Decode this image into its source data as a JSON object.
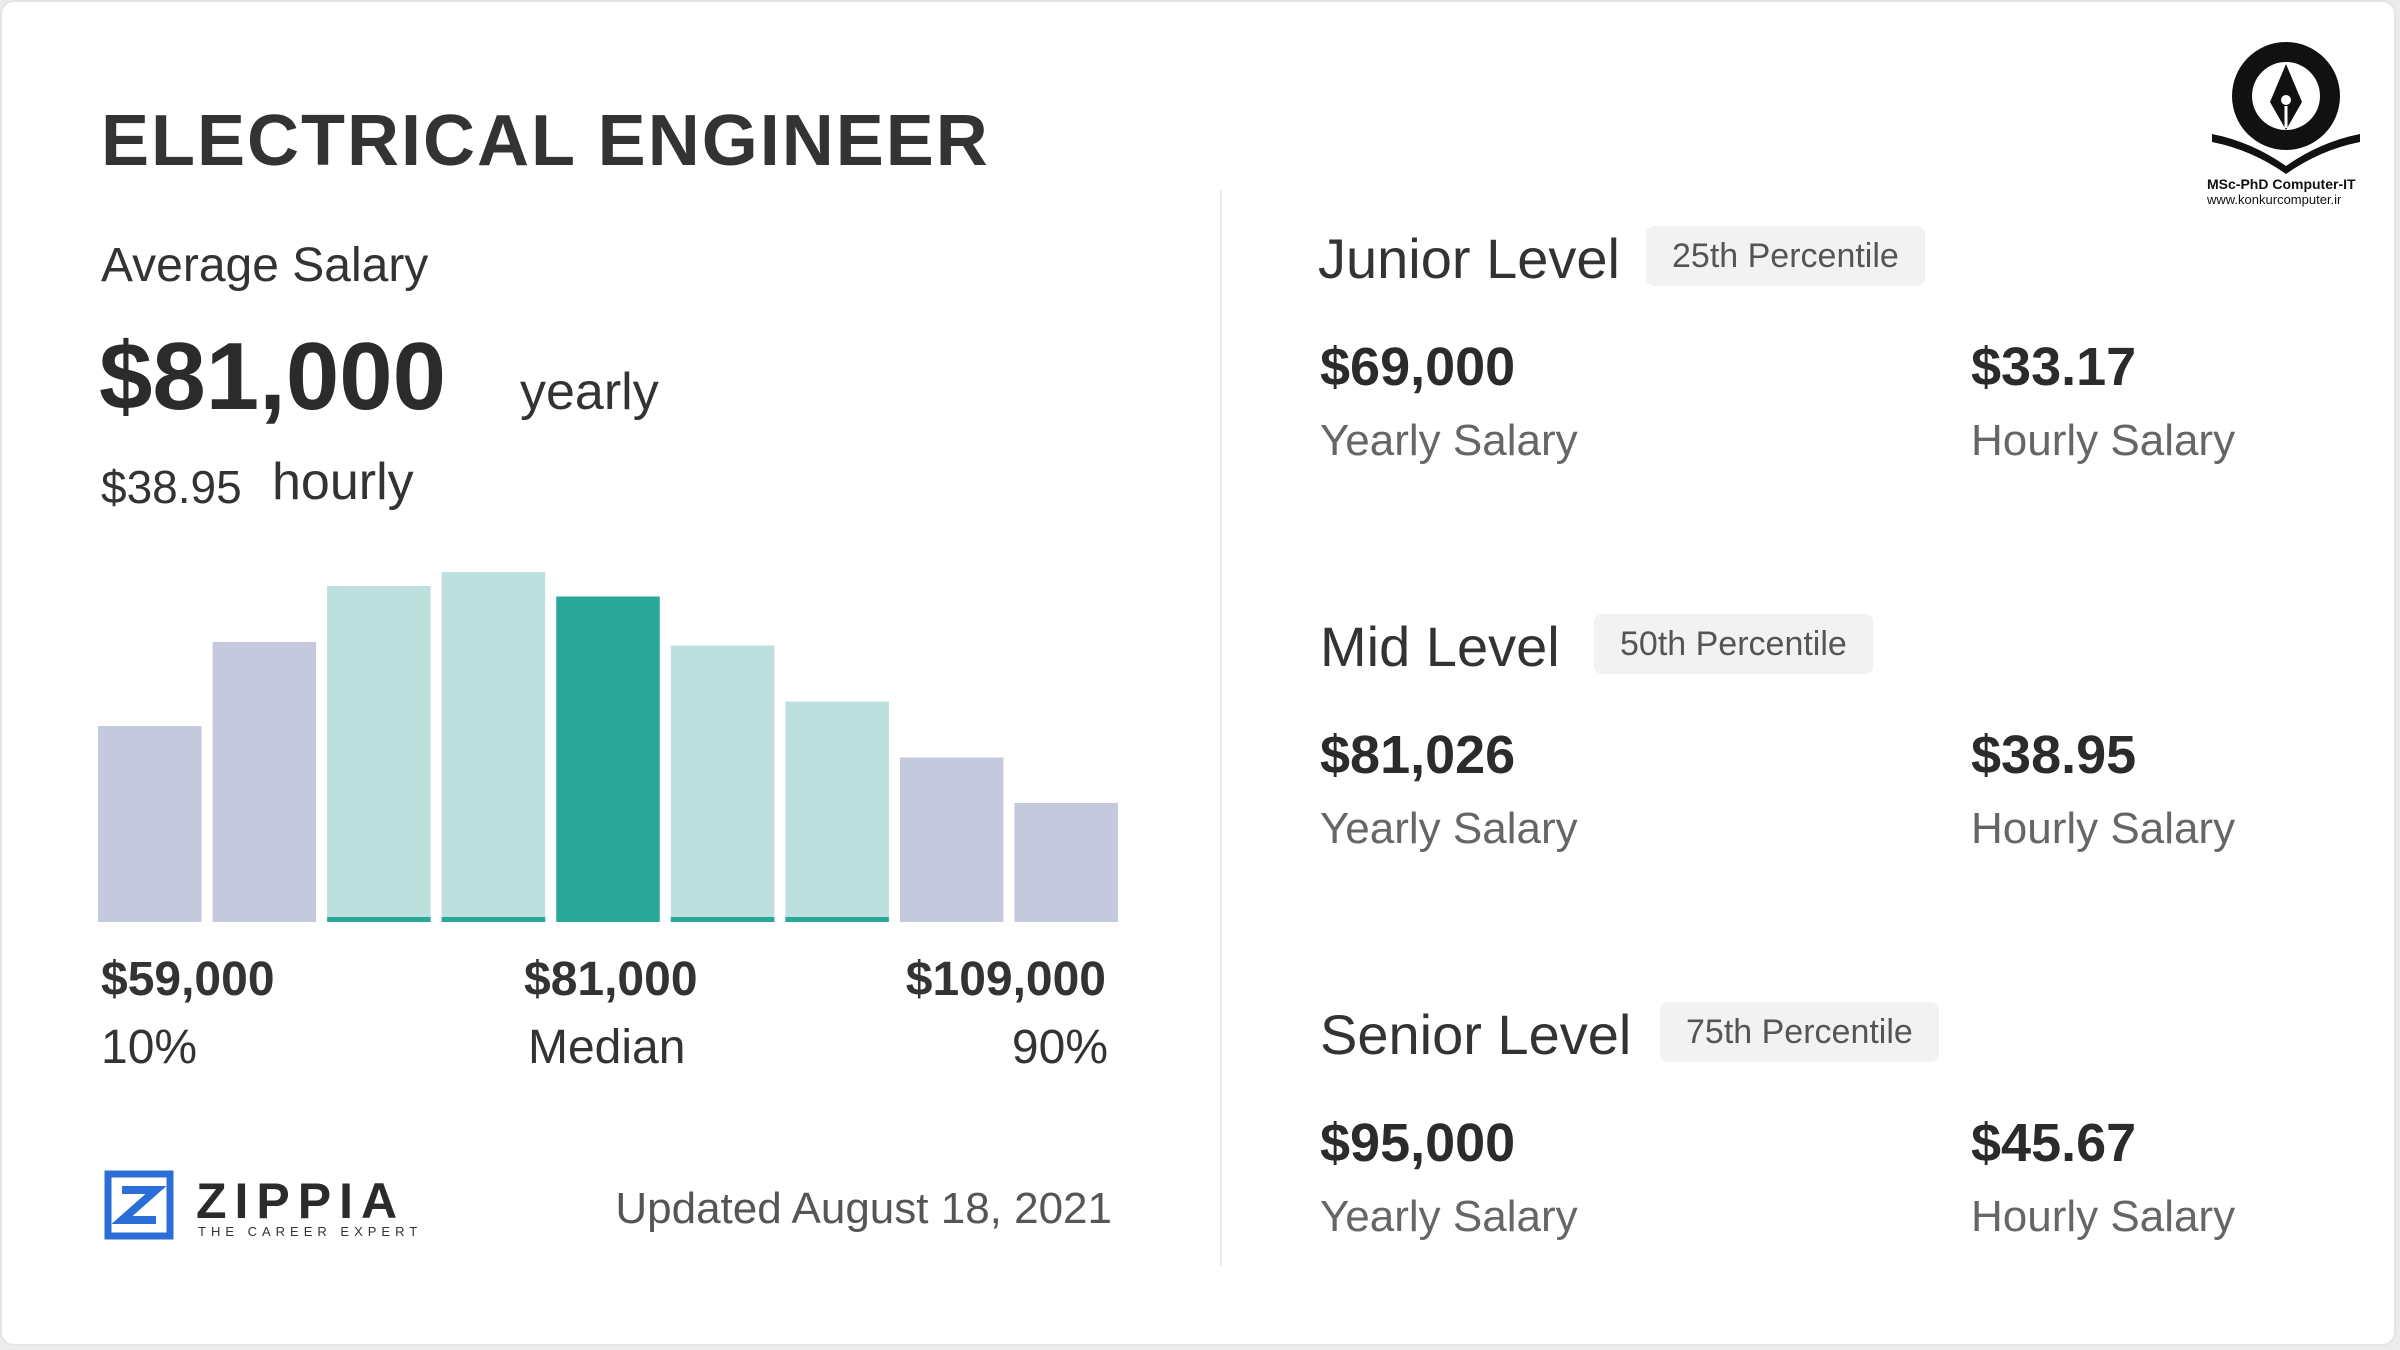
{
  "title": "ELECTRICAL ENGINEER",
  "average": {
    "label": "Average Salary",
    "yearly_value": "$81,000",
    "yearly_word": "yearly",
    "hourly_value": "$38.95",
    "hourly_word": "hourly"
  },
  "chart_data": {
    "type": "bar",
    "title": "",
    "xlabel": "",
    "ylabel": "",
    "categories": [
      "1",
      "2",
      "3",
      "4",
      "5",
      "6",
      "7",
      "8",
      "9"
    ],
    "values": [
      56,
      80,
      96,
      100,
      93,
      79,
      63,
      47,
      34
    ],
    "ylim": [
      0,
      100
    ],
    "bar_colors": [
      "#c4c9de",
      "#c4c9de",
      "#bde0de",
      "#bde0de",
      "#2aa897",
      "#bde0de",
      "#bde0de",
      "#c4c9de",
      "#c4c9de"
    ],
    "underline_bars": [
      2,
      3,
      5,
      6
    ],
    "underline_color": "#2aa897",
    "labels": {
      "low_value": "$59,000",
      "low_pct": "10%",
      "median_value": "$81,000",
      "median_label": "Median",
      "high_value": "$109,000",
      "high_pct": "90%"
    }
  },
  "footer": {
    "brand": "ZIPPIA",
    "tagline": "THE CAREER EXPERT",
    "updated": "Updated August 18, 2021"
  },
  "levels": [
    {
      "name": "Junior Level",
      "percentile": "25th Percentile",
      "yearly": "$69,000",
      "yearly_label": "Yearly Salary",
      "hourly": "$33.17",
      "hourly_label": "Hourly Salary"
    },
    {
      "name": "Mid Level",
      "percentile": "50th Percentile",
      "yearly": "$81,026",
      "yearly_label": "Yearly Salary",
      "hourly": "$38.95",
      "hourly_label": "Hourly Salary"
    },
    {
      "name": "Senior Level",
      "percentile": "75th Percentile",
      "yearly": "$95,000",
      "yearly_label": "Yearly Salary",
      "hourly": "$45.67",
      "hourly_label": "Hourly Salary"
    }
  ],
  "watermark": {
    "line1": "MSc-PhD Computer-IT",
    "line2": "www.konkurcomputer.ir"
  },
  "colors": {
    "accent": "#2aa897",
    "zippia_blue": "#2b6fd6"
  }
}
